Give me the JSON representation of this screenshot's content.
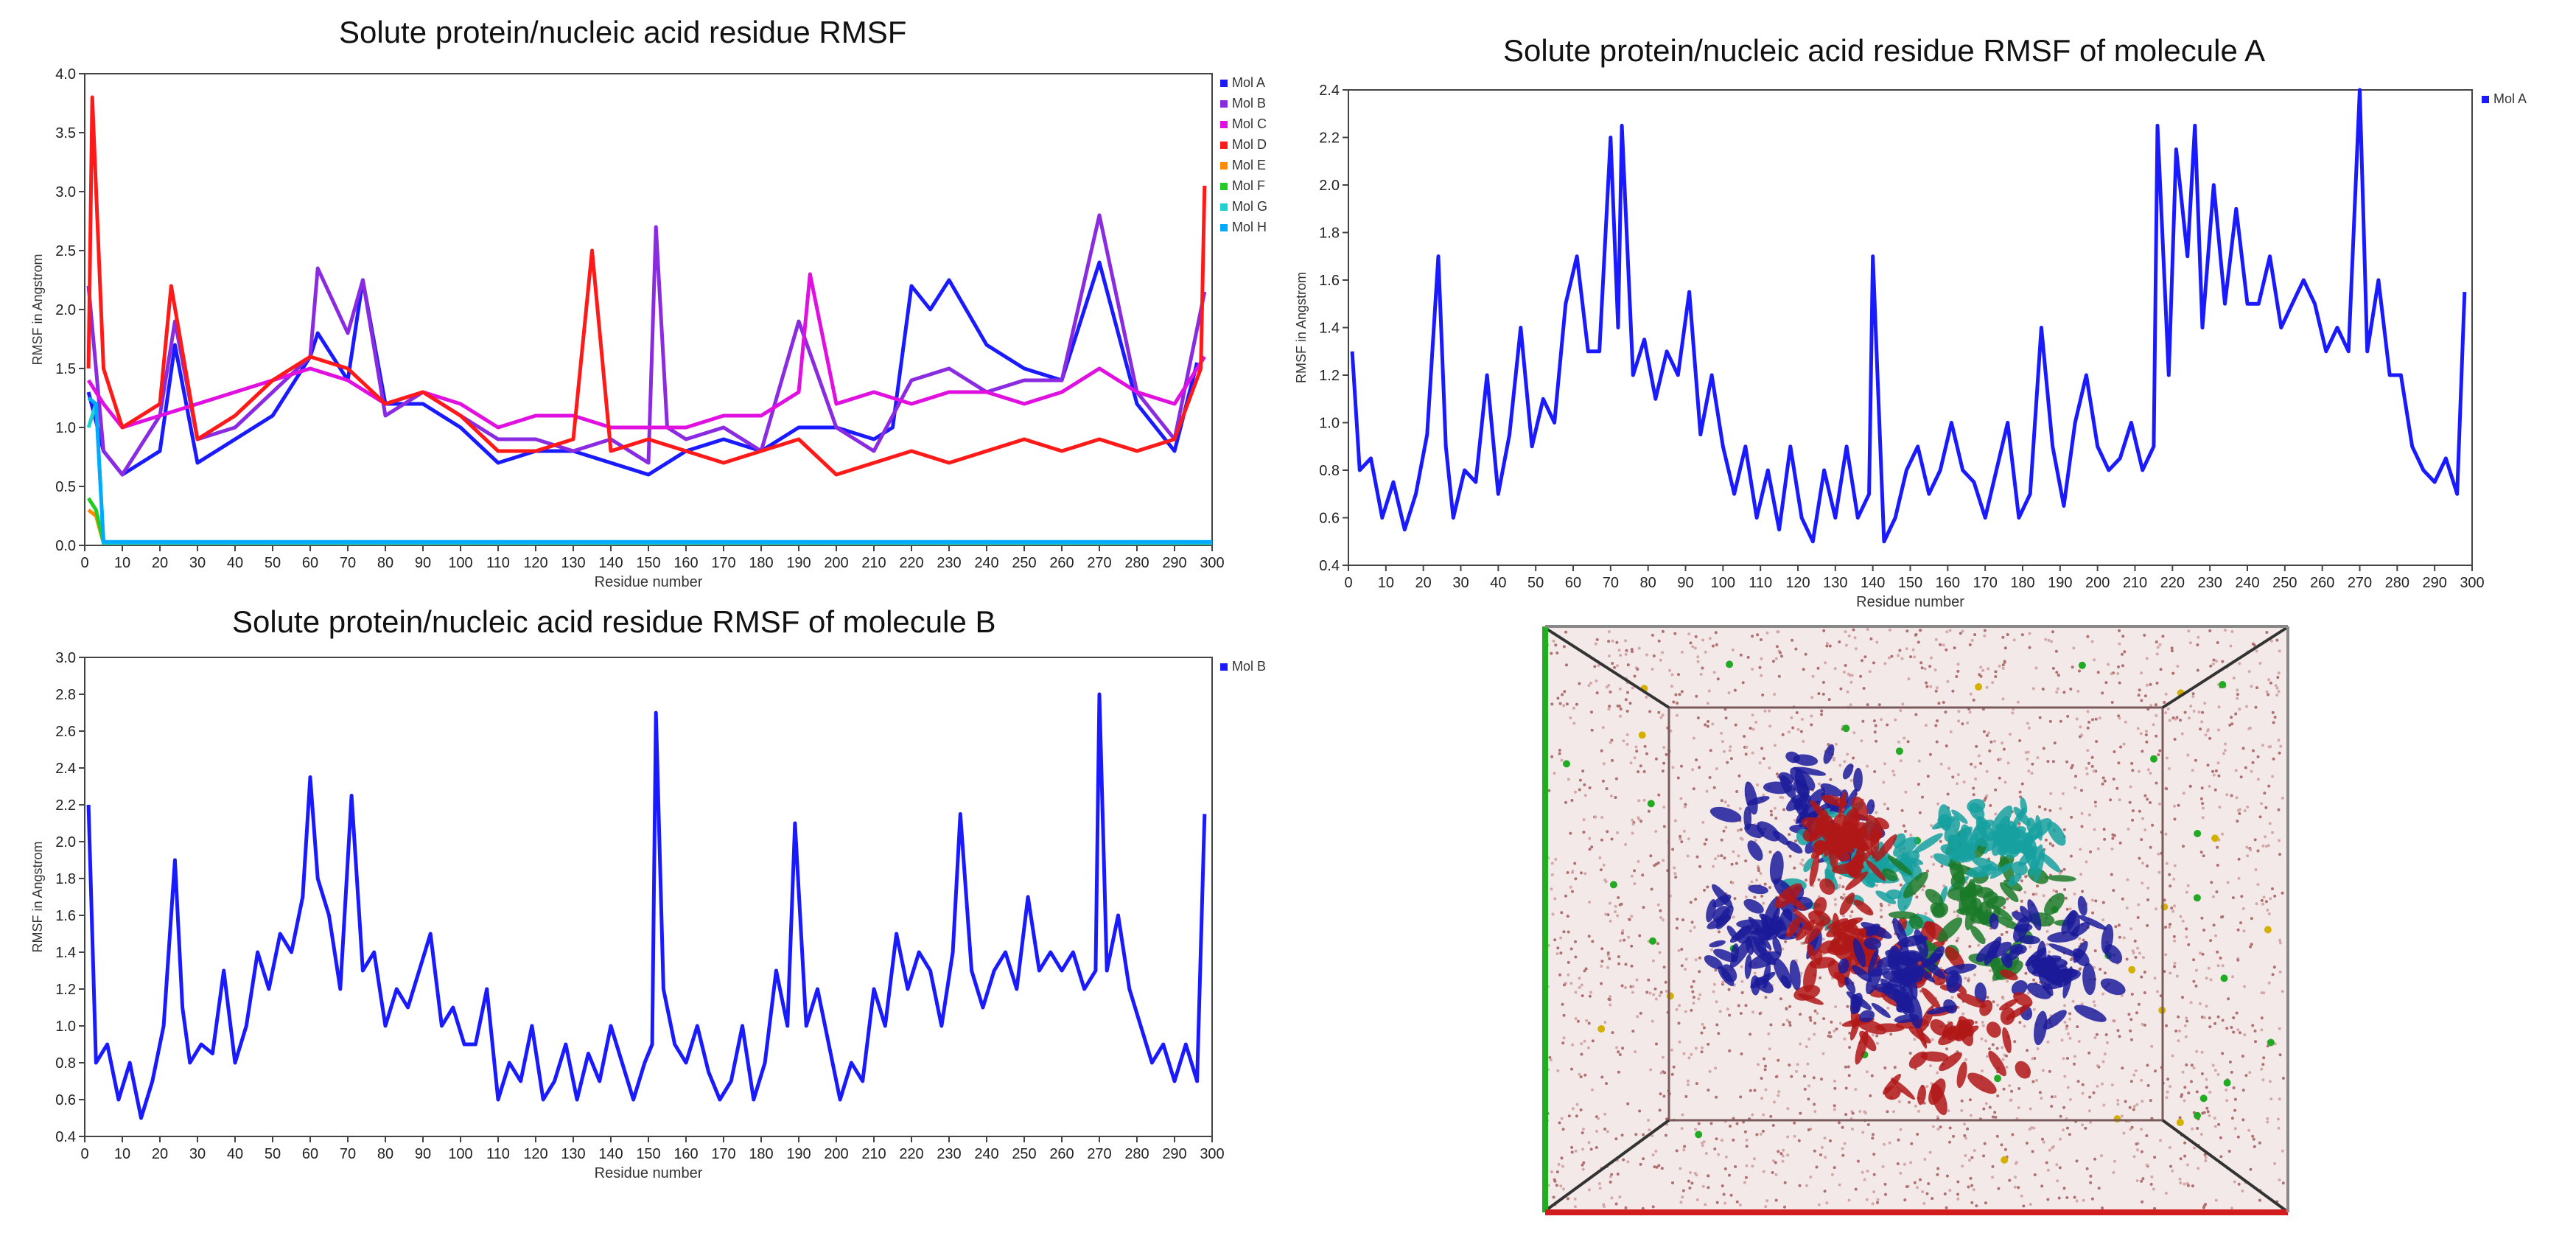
{
  "chart_data": [
    {
      "type": "line",
      "title": "Solute protein/nucleic acid residue RMSF",
      "xlabel": "Residue number",
      "ylabel": "RMSF in Angstrom",
      "xlim": [
        0,
        300
      ],
      "ylim": [
        0,
        4.0
      ],
      "xticks": [
        0,
        10,
        20,
        30,
        40,
        50,
        60,
        70,
        80,
        90,
        100,
        110,
        120,
        130,
        140,
        150,
        160,
        170,
        180,
        190,
        200,
        210,
        220,
        230,
        240,
        250,
        260,
        270,
        280,
        290,
        300
      ],
      "yticks": [
        0,
        0.5,
        1.0,
        1.5,
        2.0,
        2.5,
        3.0,
        3.5,
        4.0
      ],
      "ytick_labels": [
        "0.0",
        "0.5",
        "1.0",
        "1.5",
        "2.0",
        "2.5",
        "3.0",
        "3.5",
        "4.0"
      ],
      "legend_position": "top-right",
      "series": [
        {
          "name": "Mol A",
          "color": "#1a1aff",
          "x": [
            1,
            5,
            10,
            20,
            24,
            30,
            40,
            50,
            60,
            62,
            70,
            74,
            80,
            90,
            100,
            110,
            120,
            130,
            140,
            150,
            160,
            170,
            180,
            190,
            200,
            210,
            215,
            220,
            225,
            230,
            240,
            250,
            260,
            270,
            280,
            290,
            296
          ],
          "values": [
            1.3,
            0.8,
            0.6,
            0.8,
            1.7,
            0.7,
            0.9,
            1.1,
            1.6,
            1.8,
            1.4,
            2.25,
            1.2,
            1.2,
            1.0,
            0.7,
            0.8,
            0.8,
            0.7,
            0.6,
            0.8,
            0.9,
            0.8,
            1.0,
            1.0,
            0.9,
            1.0,
            2.2,
            2.0,
            2.25,
            1.7,
            1.5,
            1.4,
            2.4,
            1.2,
            0.8,
            1.55
          ]
        },
        {
          "name": "Mol B",
          "color": "#8a2be2",
          "x": [
            1,
            5,
            10,
            20,
            24,
            30,
            40,
            50,
            60,
            62,
            70,
            74,
            80,
            90,
            100,
            110,
            120,
            130,
            140,
            150,
            152,
            155,
            160,
            170,
            180,
            190,
            200,
            210,
            220,
            230,
            240,
            250,
            260,
            270,
            280,
            290,
            298
          ],
          "values": [
            2.2,
            0.8,
            0.6,
            1.1,
            1.9,
            0.9,
            1.0,
            1.3,
            1.6,
            2.35,
            1.8,
            2.25,
            1.1,
            1.3,
            1.1,
            0.9,
            0.9,
            0.8,
            0.9,
            0.7,
            2.7,
            1.0,
            0.9,
            1.0,
            0.8,
            1.9,
            1.0,
            0.8,
            1.4,
            1.5,
            1.3,
            1.4,
            1.4,
            2.8,
            1.3,
            0.9,
            2.15
          ]
        },
        {
          "name": "Mol C",
          "color": "#e010e0",
          "x": [
            1,
            5,
            10,
            20,
            30,
            40,
            50,
            60,
            70,
            80,
            90,
            100,
            110,
            120,
            130,
            140,
            150,
            160,
            170,
            180,
            190,
            193,
            200,
            210,
            220,
            230,
            240,
            250,
            260,
            270,
            280,
            290,
            298
          ],
          "values": [
            1.4,
            1.2,
            1.0,
            1.1,
            1.2,
            1.3,
            1.4,
            1.5,
            1.4,
            1.2,
            1.3,
            1.2,
            1.0,
            1.1,
            1.1,
            1.0,
            1.0,
            1.0,
            1.1,
            1.1,
            1.3,
            2.3,
            1.2,
            1.3,
            1.2,
            1.3,
            1.3,
            1.2,
            1.3,
            1.5,
            1.3,
            1.2,
            1.6
          ]
        },
        {
          "name": "Mol D",
          "color": "#ff1a1a",
          "x": [
            1,
            2,
            5,
            10,
            20,
            23,
            30,
            40,
            50,
            60,
            70,
            80,
            90,
            100,
            110,
            120,
            130,
            135,
            140,
            150,
            160,
            170,
            180,
            190,
            200,
            210,
            220,
            230,
            240,
            250,
            260,
            270,
            280,
            290,
            297,
            298
          ],
          "values": [
            1.5,
            3.8,
            1.5,
            1.0,
            1.2,
            2.2,
            0.9,
            1.1,
            1.4,
            1.6,
            1.5,
            1.2,
            1.3,
            1.1,
            0.8,
            0.8,
            0.9,
            2.5,
            0.8,
            0.9,
            0.8,
            0.7,
            0.8,
            0.9,
            0.6,
            0.7,
            0.8,
            0.7,
            0.8,
            0.9,
            0.8,
            0.9,
            0.8,
            0.9,
            1.5,
            3.05
          ]
        },
        {
          "name": "Mol E",
          "color": "#ff8c00",
          "x": [
            1,
            3,
            5,
            300
          ],
          "values": [
            0.3,
            0.25,
            0.02,
            0.02
          ]
        },
        {
          "name": "Mol F",
          "color": "#22cc22",
          "x": [
            1,
            3,
            5,
            300
          ],
          "values": [
            0.4,
            0.3,
            0.02,
            0.02
          ]
        },
        {
          "name": "Mol G",
          "color": "#20d0d0",
          "x": [
            1,
            3,
            5,
            300
          ],
          "values": [
            1.0,
            1.2,
            0.02,
            0.02
          ]
        },
        {
          "name": "Mol H",
          "color": "#00aaff",
          "x": [
            1,
            3,
            5,
            300
          ],
          "values": [
            1.25,
            1.2,
            0.03,
            0.03
          ]
        }
      ]
    },
    {
      "type": "line",
      "title": "Solute protein/nucleic acid residue RMSF of molecule A",
      "xlabel": "Residue number",
      "ylabel": "RMSF in Angstrom",
      "xlim": [
        0,
        300
      ],
      "ylim": [
        0.4,
        2.4
      ],
      "xticks": [
        0,
        10,
        20,
        30,
        40,
        50,
        60,
        70,
        80,
        90,
        100,
        110,
        120,
        130,
        140,
        150,
        160,
        170,
        180,
        190,
        200,
        210,
        220,
        230,
        240,
        250,
        260,
        270,
        280,
        290,
        300
      ],
      "yticks": [
        0.4,
        0.6,
        0.8,
        1.0,
        1.2,
        1.4,
        1.6,
        1.8,
        2.0,
        2.2,
        2.4
      ],
      "ytick_labels": [
        "0.4",
        "0.6",
        "0.8",
        "1.0",
        "1.2",
        "1.4",
        "1.6",
        "1.8",
        "2.0",
        "2.2",
        "2.4"
      ],
      "legend_position": "top-right",
      "series": [
        {
          "name": "Mol A",
          "color": "#1a1aff",
          "x": [
            1,
            3,
            6,
            9,
            12,
            15,
            18,
            21,
            24,
            26,
            28,
            31,
            34,
            37,
            40,
            43,
            46,
            49,
            52,
            55,
            58,
            61,
            64,
            67,
            70,
            72,
            73,
            76,
            79,
            82,
            85,
            88,
            91,
            94,
            97,
            100,
            103,
            106,
            109,
            112,
            115,
            118,
            121,
            124,
            127,
            130,
            133,
            136,
            139,
            140,
            143,
            146,
            149,
            152,
            155,
            158,
            161,
            164,
            167,
            170,
            173,
            176,
            179,
            182,
            185,
            188,
            191,
            194,
            197,
            200,
            203,
            206,
            209,
            212,
            215,
            216,
            219,
            221,
            224,
            226,
            228,
            231,
            234,
            237,
            240,
            243,
            246,
            249,
            252,
            255,
            258,
            261,
            264,
            267,
            270,
            272,
            275,
            278,
            281,
            284,
            287,
            290,
            293,
            296,
            298
          ],
          "values": [
            1.3,
            0.8,
            0.85,
            0.6,
            0.75,
            0.55,
            0.7,
            0.95,
            1.7,
            0.9,
            0.6,
            0.8,
            0.75,
            1.2,
            0.7,
            0.95,
            1.4,
            0.9,
            1.1,
            1.0,
            1.5,
            1.7,
            1.3,
            1.3,
            2.2,
            1.4,
            2.25,
            1.2,
            1.35,
            1.1,
            1.3,
            1.2,
            1.55,
            0.95,
            1.2,
            0.9,
            0.7,
            0.9,
            0.6,
            0.8,
            0.55,
            0.9,
            0.6,
            0.5,
            0.8,
            0.6,
            0.9,
            0.6,
            0.7,
            1.7,
            0.5,
            0.6,
            0.8,
            0.9,
            0.7,
            0.8,
            1.0,
            0.8,
            0.75,
            0.6,
            0.8,
            1.0,
            0.6,
            0.7,
            1.4,
            0.9,
            0.65,
            1.0,
            1.2,
            0.9,
            0.8,
            0.85,
            1.0,
            0.8,
            0.9,
            2.25,
            1.2,
            2.15,
            1.7,
            2.25,
            1.4,
            2.0,
            1.5,
            1.9,
            1.5,
            1.5,
            1.7,
            1.4,
            1.5,
            1.6,
            1.5,
            1.3,
            1.4,
            1.3,
            2.4,
            1.3,
            1.6,
            1.2,
            1.2,
            0.9,
            0.8,
            0.75,
            0.85,
            0.7,
            1.55
          ]
        }
      ]
    },
    {
      "type": "line",
      "title": "Solute protein/nucleic acid residue RMSF of molecule B",
      "xlabel": "Residue number",
      "ylabel": "RMSF in Angstrom",
      "xlim": [
        0,
        300
      ],
      "ylim": [
        0.4,
        3.0
      ],
      "xticks": [
        0,
        10,
        20,
        30,
        40,
        50,
        60,
        70,
        80,
        90,
        100,
        110,
        120,
        130,
        140,
        150,
        160,
        170,
        180,
        190,
        200,
        210,
        220,
        230,
        240,
        250,
        260,
        270,
        280,
        290,
        300
      ],
      "yticks": [
        0.4,
        0.6,
        0.8,
        1.0,
        1.2,
        1.4,
        1.6,
        1.8,
        2.0,
        2.2,
        2.4,
        2.6,
        2.8,
        3.0
      ],
      "ytick_labels": [
        "0.4",
        "0.6",
        "0.8",
        "1.0",
        "1.2",
        "1.4",
        "1.6",
        "1.8",
        "2.0",
        "2.2",
        "2.4",
        "2.6",
        "2.8",
        "3.0"
      ],
      "legend_position": "top-right",
      "series": [
        {
          "name": "Mol B",
          "color": "#1a1aff",
          "x": [
            1,
            3,
            6,
            9,
            12,
            15,
            18,
            21,
            24,
            26,
            28,
            31,
            34,
            37,
            40,
            43,
            46,
            49,
            52,
            55,
            58,
            60,
            62,
            65,
            68,
            71,
            74,
            77,
            80,
            83,
            86,
            89,
            92,
            95,
            98,
            101,
            104,
            107,
            110,
            113,
            116,
            119,
            122,
            125,
            128,
            131,
            134,
            137,
            140,
            143,
            146,
            149,
            151,
            152,
            154,
            157,
            160,
            163,
            166,
            169,
            172,
            175,
            178,
            181,
            184,
            187,
            189,
            192,
            195,
            198,
            201,
            204,
            207,
            210,
            213,
            216,
            219,
            222,
            225,
            228,
            231,
            233,
            236,
            239,
            242,
            245,
            248,
            251,
            254,
            257,
            260,
            263,
            266,
            269,
            270,
            272,
            275,
            278,
            281,
            284,
            287,
            290,
            293,
            296,
            298
          ],
          "values": [
            2.2,
            0.8,
            0.9,
            0.6,
            0.8,
            0.5,
            0.7,
            1.0,
            1.9,
            1.1,
            0.8,
            0.9,
            0.85,
            1.3,
            0.8,
            1.0,
            1.4,
            1.2,
            1.5,
            1.4,
            1.7,
            2.35,
            1.8,
            1.6,
            1.2,
            2.25,
            1.3,
            1.4,
            1.0,
            1.2,
            1.1,
            1.3,
            1.5,
            1.0,
            1.1,
            0.9,
            0.9,
            1.2,
            0.6,
            0.8,
            0.7,
            1.0,
            0.6,
            0.7,
            0.9,
            0.6,
            0.85,
            0.7,
            1.0,
            0.8,
            0.6,
            0.8,
            0.9,
            2.7,
            1.2,
            0.9,
            0.8,
            1.0,
            0.75,
            0.6,
            0.7,
            1.0,
            0.6,
            0.8,
            1.3,
            1.0,
            2.1,
            1.0,
            1.2,
            0.9,
            0.6,
            0.8,
            0.7,
            1.2,
            1.0,
            1.5,
            1.2,
            1.4,
            1.3,
            1.0,
            1.4,
            2.15,
            1.3,
            1.1,
            1.3,
            1.4,
            1.2,
            1.7,
            1.3,
            1.4,
            1.3,
            1.4,
            1.2,
            1.3,
            2.8,
            1.3,
            1.6,
            1.2,
            1.0,
            0.8,
            0.9,
            0.7,
            0.9,
            0.7,
            2.15
          ]
        }
      ]
    }
  ],
  "image_panel": {
    "description_name": "molecular-dynamics-simulation-box"
  }
}
